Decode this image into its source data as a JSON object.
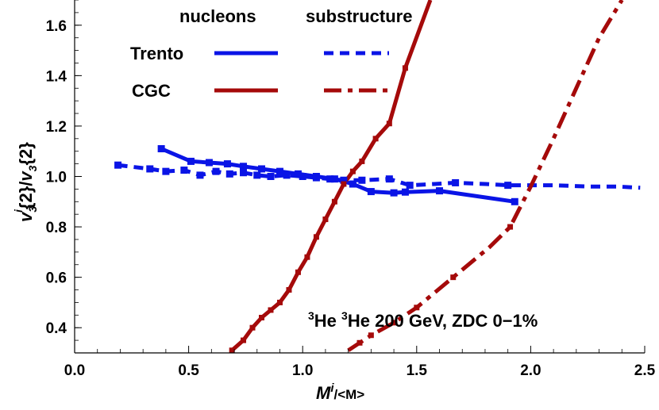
{
  "chart_data": {
    "type": "line",
    "xlabel_main": "M",
    "xlabel_sup": "i",
    "xlabel_rest": "/<M>",
    "ylabel_v": "v",
    "ylabel_sup": "i",
    "ylabel_sub": "3",
    "ylabel_mid": "{2}/",
    "ylabel_v2": "v",
    "ylabel_sub2": "3",
    "ylabel_end": "{2}",
    "xlim": [
      0.0,
      2.5
    ],
    "ylim": [
      0.3,
      1.7
    ],
    "xticks": [
      0.0,
      0.5,
      1.0,
      1.5,
      2.0,
      2.5
    ],
    "xtick_labels": [
      "0.0",
      "0.5",
      "1.0",
      "1.5",
      "2.0",
      "2.5"
    ],
    "yticks": [
      0.4,
      0.6,
      0.8,
      1.0,
      1.2,
      1.4,
      1.6
    ],
    "ytick_labels": [
      "0.4",
      "0.6",
      "0.8",
      "1.0",
      "1.2",
      "1.4",
      "1.6"
    ],
    "legend": {
      "col1": "nucleons",
      "col2": "substructure",
      "row1": "Trento",
      "row2": "CGC"
    },
    "annotation": {
      "sup1": "3",
      "t1": "He ",
      "sup2": "3",
      "t2": "He 200 GeV, ZDC 0−1%"
    },
    "colors": {
      "trento": "#0a14e6",
      "cgc": "#a50a0a"
    },
    "series": [
      {
        "model": "Trento",
        "variant": "nucleons",
        "style": "solid",
        "x": [
          0.38,
          0.51,
          0.59,
          0.67,
          0.74,
          0.82,
          0.9,
          0.98,
          1.06,
          1.14,
          1.22,
          1.3,
          1.4,
          1.45,
          1.6,
          1.93
        ],
        "y": [
          1.11,
          1.06,
          1.055,
          1.05,
          1.04,
          1.03,
          1.02,
          1.01,
          1.0,
          0.99,
          0.97,
          0.94,
          0.935,
          0.938,
          0.943,
          0.9
        ]
      },
      {
        "model": "Trento",
        "variant": "substructure",
        "style": "dashed",
        "x": [
          0.19,
          0.33,
          0.4,
          0.48,
          0.55,
          0.62,
          0.68,
          0.74,
          0.8,
          0.86,
          0.93,
          1.0,
          1.06,
          1.12,
          1.18,
          1.26,
          1.38,
          1.47,
          1.58,
          1.67,
          1.8,
          1.9,
          2.0,
          2.1,
          2.25,
          2.38,
          2.48
        ],
        "y": [
          1.045,
          1.03,
          1.02,
          1.025,
          1.005,
          1.02,
          1.01,
          1.015,
          1.005,
          1.0,
          1.005,
          1.0,
          0.995,
          0.99,
          0.985,
          0.985,
          0.99,
          0.965,
          0.97,
          0.975,
          0.97,
          0.965,
          0.965,
          0.965,
          0.96,
          0.96,
          0.955
        ]
      },
      {
        "model": "CGC",
        "variant": "nucleons",
        "style": "solid",
        "x": [
          0.69,
          0.74,
          0.78,
          0.82,
          0.86,
          0.9,
          0.94,
          0.98,
          1.02,
          1.06,
          1.1,
          1.14,
          1.18,
          1.22,
          1.26,
          1.32,
          1.38,
          1.45,
          1.56
        ],
        "y": [
          0.31,
          0.35,
          0.4,
          0.44,
          0.47,
          0.5,
          0.55,
          0.62,
          0.68,
          0.76,
          0.83,
          0.9,
          0.97,
          1.02,
          1.06,
          1.15,
          1.21,
          1.43,
          1.7
        ]
      },
      {
        "model": "CGC",
        "variant": "substructure",
        "style": "dashdot",
        "x": [
          1.2,
          1.25,
          1.3,
          1.4,
          1.5,
          1.66,
          1.82,
          1.91,
          2.0,
          2.1,
          2.2,
          2.3,
          2.4
        ],
        "y": [
          0.31,
          0.34,
          0.37,
          0.42,
          0.48,
          0.6,
          0.72,
          0.8,
          0.96,
          1.15,
          1.35,
          1.55,
          1.7
        ]
      }
    ],
    "markers": {
      "Trento_nucleons": [
        [
          0.38,
          1.11
        ],
        [
          0.51,
          1.06
        ],
        [
          0.59,
          1.055
        ],
        [
          0.67,
          1.05
        ],
        [
          0.74,
          1.04
        ],
        [
          0.82,
          1.03
        ],
        [
          0.9,
          1.02
        ],
        [
          0.98,
          1.01
        ],
        [
          1.06,
          1.0
        ],
        [
          1.14,
          0.99
        ],
        [
          1.22,
          0.97
        ],
        [
          1.3,
          0.94
        ],
        [
          1.4,
          0.935
        ],
        [
          1.45,
          0.938
        ],
        [
          1.6,
          0.943
        ],
        [
          1.93,
          0.9
        ]
      ],
      "Trento_substructure": [
        [
          0.19,
          1.045
        ],
        [
          0.33,
          1.03
        ],
        [
          0.4,
          1.02
        ],
        [
          0.48,
          1.025
        ],
        [
          0.55,
          1.005
        ],
        [
          0.62,
          1.02
        ],
        [
          0.68,
          1.01
        ],
        [
          0.74,
          1.015
        ],
        [
          0.8,
          1.005
        ],
        [
          0.86,
          1.0
        ],
        [
          0.93,
          1.005
        ],
        [
          1.0,
          1.0
        ],
        [
          1.06,
          0.995
        ],
        [
          1.12,
          0.99
        ],
        [
          1.18,
          0.985
        ],
        [
          1.26,
          0.985
        ],
        [
          1.38,
          0.99
        ],
        [
          1.47,
          0.965
        ],
        [
          1.67,
          0.975
        ],
        [
          1.9,
          0.965
        ]
      ],
      "CGC_nucleons": [
        [
          0.69,
          0.31
        ],
        [
          0.74,
          0.35
        ],
        [
          0.78,
          0.4
        ],
        [
          0.82,
          0.44
        ],
        [
          0.86,
          0.47
        ],
        [
          0.9,
          0.5
        ],
        [
          0.94,
          0.55
        ],
        [
          0.98,
          0.62
        ],
        [
          1.02,
          0.68
        ],
        [
          1.06,
          0.76
        ],
        [
          1.1,
          0.83
        ],
        [
          1.14,
          0.9
        ],
        [
          1.18,
          0.97
        ],
        [
          1.22,
          1.02
        ],
        [
          1.26,
          1.06
        ],
        [
          1.32,
          1.15
        ],
        [
          1.38,
          1.21
        ],
        [
          1.45,
          1.43
        ]
      ],
      "CGC_substructure": [
        [
          1.25,
          0.34
        ],
        [
          1.3,
          0.37
        ],
        [
          1.4,
          0.42
        ],
        [
          1.5,
          0.48
        ],
        [
          1.66,
          0.6
        ],
        [
          1.91,
          0.8
        ]
      ]
    }
  }
}
